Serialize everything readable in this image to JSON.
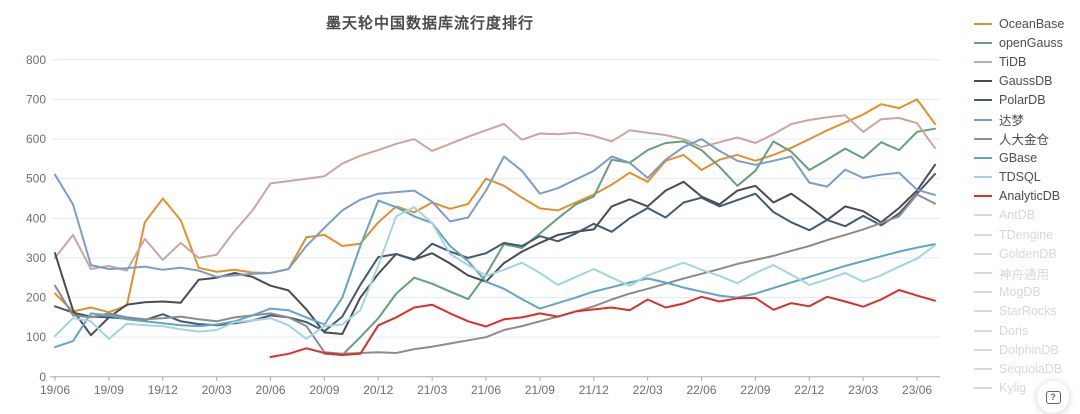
{
  "help": {
    "glyph": "?"
  },
  "colors": {
    "grid": "#e3ebf4",
    "axis": "#ababab",
    "tick_label": "#6a6f76",
    "title": "#4a4a4a",
    "legend_label": "#4c4c50",
    "disabled": "#d8d8d8"
  },
  "chart_data": {
    "type": "line",
    "title": "墨天轮中国数据库流行度排行",
    "xlabel": "",
    "ylabel": "",
    "ylim": [
      0,
      800
    ],
    "y_ticks": [
      0,
      100,
      200,
      300,
      400,
      500,
      600,
      700,
      800
    ],
    "grid": "horizontal",
    "legend_position": "right",
    "x_tick_every": 3,
    "x": [
      "19/06",
      "19/07",
      "19/08",
      "19/09",
      "19/10",
      "19/11",
      "19/12",
      "20/01",
      "20/02",
      "20/03",
      "20/04",
      "20/05",
      "20/06",
      "20/07",
      "20/08",
      "20/09",
      "20/10",
      "20/11",
      "20/12",
      "21/01",
      "21/02",
      "21/03",
      "21/04",
      "21/05",
      "21/06",
      "21/07",
      "21/08",
      "21/09",
      "21/10",
      "21/11",
      "21/12",
      "22/01",
      "22/02",
      "22/03",
      "22/04",
      "22/05",
      "22/06",
      "22/07",
      "22/08",
      "22/09",
      "22/10",
      "22/11",
      "22/12",
      "23/01",
      "23/02",
      "23/03",
      "23/04",
      "23/05",
      "23/06",
      "23/07"
    ],
    "x_tick_labels": [
      "19/06",
      "19/09",
      "19/12",
      "20/03",
      "20/06",
      "20/09",
      "20/12",
      "21/03",
      "21/06",
      "21/09",
      "21/12",
      "22/03",
      "22/06",
      "22/09",
      "22/12",
      "23/03",
      "23/06"
    ],
    "series": [
      {
        "name": "OceanBase",
        "color": "#e0912c",
        "values": [
          210,
          165,
          175,
          163,
          180,
          390,
          450,
          395,
          275,
          265,
          270,
          263,
          262,
          272,
          352,
          358,
          330,
          336,
          390,
          430,
          415,
          440,
          424,
          436,
          500,
          482,
          452,
          425,
          420,
          440,
          460,
          485,
          515,
          492,
          545,
          560,
          522,
          548,
          560,
          545,
          560,
          578,
          600,
          622,
          642,
          662,
          688,
          678,
          700,
          638
        ]
      },
      {
        "name": "openGauss",
        "color": "#679e7c",
        "values": [
          null,
          null,
          null,
          null,
          null,
          null,
          null,
          null,
          null,
          null,
          null,
          null,
          null,
          null,
          null,
          58,
          55,
          100,
          148,
          210,
          250,
          235,
          215,
          196,
          258,
          335,
          325,
          362,
          400,
          435,
          455,
          548,
          540,
          572,
          590,
          594,
          572,
          530,
          482,
          520,
          594,
          568,
          522,
          548,
          576,
          552,
          592,
          572,
          618,
          626
        ]
      },
      {
        "name": "TiDB",
        "color": "#c7a7a1",
        "values": [
          300,
          358,
          272,
          280,
          268,
          348,
          295,
          338,
          300,
          308,
          368,
          420,
          488,
          494,
          500,
          506,
          538,
          558,
          572,
          588,
          600,
          570,
          588,
          606,
          622,
          638,
          598,
          614,
          612,
          616,
          608,
          594,
          622,
          616,
          610,
          600,
          580,
          592,
          604,
          590,
          612,
          638,
          648,
          655,
          660,
          618,
          650,
          653,
          640,
          577
        ]
      },
      {
        "name": "GaussDB",
        "color": "#4b4b52",
        "values": [
          312,
          168,
          105,
          150,
          182,
          188,
          190,
          187,
          245,
          250,
          262,
          252,
          230,
          218,
          170,
          112,
          108,
          200,
          260,
          310,
          296,
          312,
          286,
          256,
          240,
          287,
          316,
          338,
          358,
          366,
          372,
          430,
          448,
          430,
          470,
          492,
          455,
          435,
          470,
          482,
          440,
          462,
          430,
          396,
          430,
          418,
          390,
          426,
          470,
          535
        ]
      },
      {
        "name": "PolarDB",
        "color": "#455a6f",
        "values": [
          178,
          162,
          152,
          150,
          147,
          143,
          158,
          140,
          133,
          130,
          135,
          142,
          155,
          150,
          138,
          115,
          152,
          232,
          302,
          310,
          295,
          336,
          316,
          300,
          312,
          338,
          330,
          355,
          342,
          362,
          386,
          366,
          400,
          426,
          402,
          440,
          452,
          430,
          446,
          462,
          416,
          390,
          370,
          396,
          380,
          406,
          382,
          412,
          462,
          512
        ]
      },
      {
        "name": "达梦",
        "color": "#7f9cc6",
        "values": [
          510,
          435,
          282,
          272,
          274,
          278,
          270,
          275,
          268,
          252,
          256,
          260,
          262,
          272,
          330,
          376,
          420,
          447,
          462,
          466,
          470,
          442,
          392,
          402,
          470,
          556,
          520,
          462,
          476,
          498,
          520,
          556,
          540,
          502,
          548,
          580,
          600,
          570,
          545,
          535,
          545,
          556,
          490,
          480,
          523,
          502,
          510,
          515,
          472,
          459
        ]
      },
      {
        "name": "人大金仓",
        "color": "#8c8c8c",
        "values": [
          230,
          155,
          150,
          160,
          150,
          145,
          148,
          152,
          145,
          140,
          150,
          155,
          160,
          150,
          128,
          62,
          58,
          60,
          62,
          60,
          70,
          76,
          84,
          92,
          100,
          118,
          128,
          140,
          152,
          165,
          178,
          195,
          210,
          222,
          235,
          248,
          260,
          272,
          285,
          295,
          305,
          318,
          330,
          345,
          358,
          372,
          388,
          405,
          460,
          437
        ]
      },
      {
        "name": "GBase",
        "color": "#64a5c4",
        "values": [
          75,
          90,
          160,
          155,
          145,
          140,
          135,
          130,
          128,
          132,
          140,
          155,
          172,
          168,
          150,
          132,
          200,
          330,
          445,
          428,
          405,
          388,
          330,
          292,
          240,
          222,
          196,
          172,
          186,
          200,
          215,
          226,
          238,
          248,
          238,
          225,
          215,
          205,
          200,
          210,
          224,
          238,
          252,
          266,
          280,
          292,
          304,
          316,
          326,
          335
        ]
      },
      {
        "name": "TDSQL",
        "color": "#a5d5dc",
        "values": [
          103,
          148,
          140,
          96,
          134,
          130,
          128,
          120,
          114,
          118,
          138,
          142,
          148,
          130,
          96,
          128,
          132,
          168,
          282,
          405,
          428,
          388,
          310,
          282,
          255,
          270,
          288,
          262,
          232,
          252,
          272,
          250,
          230,
          256,
          272,
          288,
          270,
          255,
          236,
          262,
          282,
          258,
          232,
          246,
          262,
          240,
          256,
          278,
          298,
          332
        ]
      },
      {
        "name": "AnalyticDB",
        "color": "#d5312e",
        "values": [
          null,
          null,
          null,
          null,
          null,
          null,
          null,
          null,
          null,
          null,
          null,
          null,
          50,
          58,
          72,
          60,
          55,
          58,
          130,
          150,
          175,
          182,
          160,
          140,
          127,
          145,
          150,
          160,
          152,
          165,
          170,
          175,
          168,
          195,
          175,
          185,
          202,
          190,
          198,
          199,
          169,
          186,
          178,
          202,
          190,
          177,
          195,
          219,
          205,
          192
        ]
      }
    ],
    "legend_disabled": [
      "AntDB",
      "TDengine",
      "GoldenDB",
      "神舟通用",
      "MogDB",
      "StarRocks",
      "Doris",
      "DolphinDB",
      "SequoiaDB",
      "Kylig"
    ]
  }
}
